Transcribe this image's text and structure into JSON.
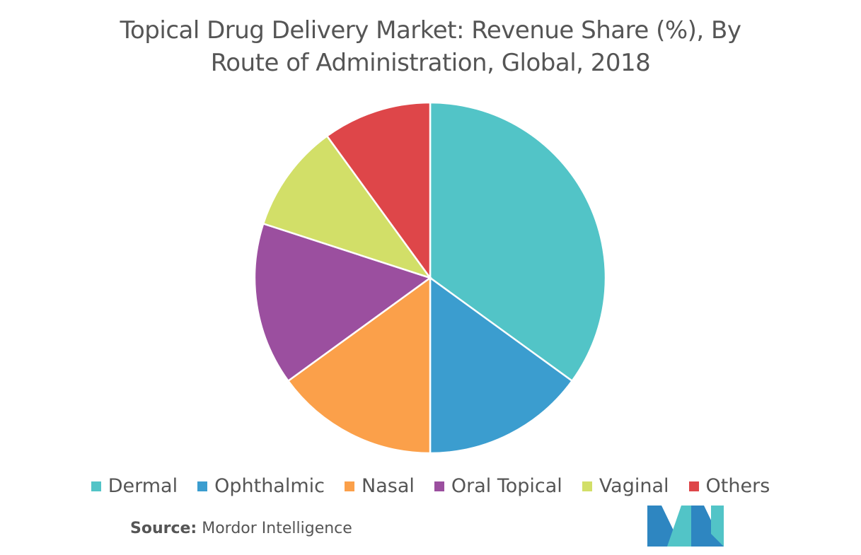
{
  "chart_data": {
    "type": "pie",
    "title": "Topical Drug Delivery Market: Revenue Share (%), By Route of Administration, Global, 2018",
    "title_lines": [
      "Topical Drug Delivery Market: Revenue Share (%), By",
      "Route of Administration, Global, 2018"
    ],
    "categories": [
      "Dermal",
      "Ophthalmic",
      "Nasal",
      "Oral Topical",
      "Vaginal",
      "Others"
    ],
    "values": [
      35,
      15,
      15,
      15,
      10,
      10
    ],
    "colors": [
      "#52C4C7",
      "#3B9DCF",
      "#FBA04A",
      "#9B4F9F",
      "#D2DF68",
      "#DE4649"
    ],
    "legend_position": "bottom"
  },
  "source": {
    "label": "Source:",
    "text": "Mordor Intelligence"
  },
  "logo": {
    "colors": [
      "#2E86C1",
      "#52C4C7"
    ]
  }
}
